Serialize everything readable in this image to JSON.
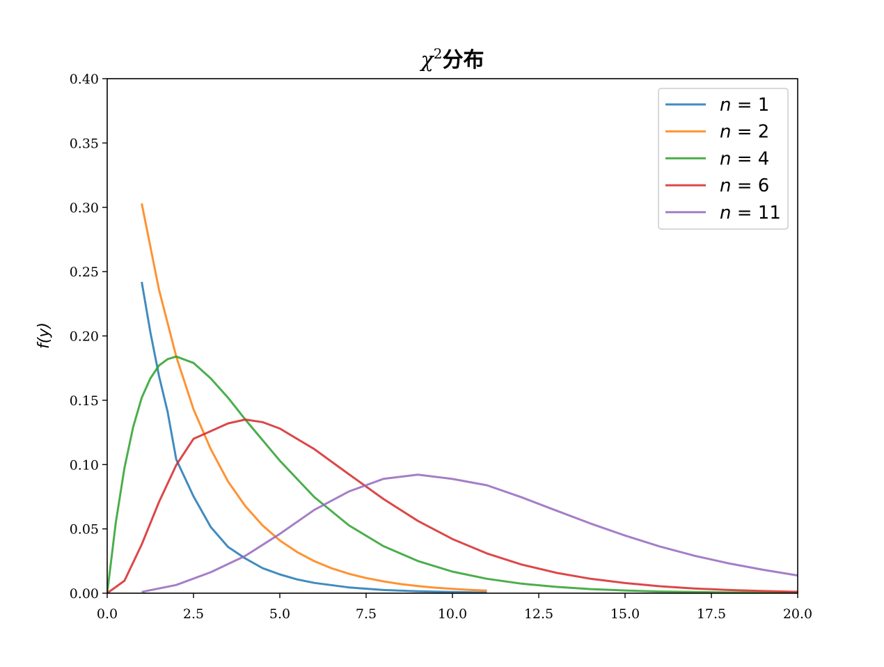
{
  "chart_data": {
    "type": "line",
    "title_symbol": "χ",
    "title_superscript": "2",
    "title_suffix": "分布",
    "xlabel": "",
    "ylabel": "f(y)",
    "xlim": [
      0,
      20
    ],
    "ylim": [
      0,
      0.4
    ],
    "xticks": [
      0,
      2.5,
      5,
      7.5,
      10,
      12.5,
      15,
      17.5,
      20
    ],
    "xtick_labels": [
      "0.0",
      "2.5",
      "5.0",
      "7.5",
      "10.0",
      "12.5",
      "15.0",
      "17.5",
      "20.0"
    ],
    "yticks": [
      0,
      0.05,
      0.1,
      0.15,
      0.2,
      0.25,
      0.3,
      0.35,
      0.4
    ],
    "ytick_labels": [
      "0.00",
      "0.05",
      "0.10",
      "0.15",
      "0.20",
      "0.25",
      "0.30",
      "0.35",
      "0.40"
    ],
    "grid": false,
    "legend_position": "top-right",
    "series": [
      {
        "name": "n = 1",
        "legend_var": "n",
        "legend_value": "1",
        "color": "#1f77b4",
        "x": [
          1,
          1.25,
          1.5,
          1.75,
          2,
          2.5,
          3,
          3.5,
          4,
          4.5,
          5,
          5.5,
          6,
          7,
          8,
          9,
          10,
          11
        ],
        "y": [
          0.242,
          0.203,
          0.169,
          0.141,
          0.104,
          0.0753,
          0.0514,
          0.036,
          0.027,
          0.0195,
          0.0146,
          0.0107,
          0.008,
          0.0045,
          0.0025,
          0.0015,
          0.0009,
          0.0005
        ]
      },
      {
        "name": "n = 2",
        "legend_var": "n",
        "legend_value": "2",
        "color": "#ff7f0e",
        "x": [
          1,
          1.5,
          2,
          2.5,
          3,
          3.5,
          4,
          4.5,
          5,
          5.5,
          6,
          6.5,
          7,
          7.5,
          8,
          8.5,
          9,
          9.5,
          10,
          10.5,
          11
        ],
        "y": [
          0.303,
          0.236,
          0.184,
          0.143,
          0.112,
          0.0869,
          0.0677,
          0.0527,
          0.041,
          0.032,
          0.0249,
          0.0194,
          0.0151,
          0.0118,
          0.0092,
          0.0071,
          0.0056,
          0.0043,
          0.0034,
          0.0026,
          0.002
        ]
      },
      {
        "name": "n = 4",
        "legend_var": "n",
        "legend_value": "4",
        "color": "#2ca02c",
        "x": [
          0,
          0.25,
          0.5,
          0.75,
          1,
          1.25,
          1.5,
          1.75,
          2,
          2.5,
          3,
          3.5,
          4,
          4.5,
          5,
          6,
          7,
          8,
          9,
          10,
          11,
          12,
          13,
          14,
          15,
          16,
          17,
          18,
          19,
          20
        ],
        "y": [
          0,
          0.0551,
          0.0974,
          0.129,
          0.152,
          0.167,
          0.177,
          0.182,
          0.184,
          0.179,
          0.167,
          0.152,
          0.135,
          0.119,
          0.103,
          0.0747,
          0.0528,
          0.0366,
          0.025,
          0.0168,
          0.0112,
          0.0074,
          0.0049,
          0.0032,
          0.0021,
          0.0013,
          0.0009,
          0.0006,
          0.0004,
          0.0002
        ]
      },
      {
        "name": "n = 6",
        "legend_var": "n",
        "legend_value": "6",
        "color": "#d62728",
        "x": [
          0,
          0.5,
          1,
          1.5,
          2,
          2.5,
          3,
          3.5,
          4,
          4.5,
          5,
          5.5,
          6,
          7,
          8,
          9,
          10,
          11,
          12,
          13,
          14,
          15,
          16,
          17,
          18,
          19,
          20
        ],
        "y": [
          0,
          0.0097,
          0.0379,
          0.0709,
          0.0996,
          0.12,
          0.126,
          0.132,
          0.135,
          0.133,
          0.128,
          0.12,
          0.112,
          0.0925,
          0.0733,
          0.0562,
          0.0421,
          0.0309,
          0.0223,
          0.0159,
          0.0112,
          0.0079,
          0.0054,
          0.0037,
          0.0025,
          0.0017,
          0.0011
        ]
      },
      {
        "name": "n = 11",
        "legend_var": "n",
        "legend_value": "11",
        "color": "#9467bd",
        "x": [
          1,
          2,
          3,
          4,
          5,
          6,
          7,
          8,
          9,
          10,
          11,
          12,
          13,
          14,
          15,
          16,
          17,
          18,
          19,
          20
        ],
        "y": [
          0.001,
          0.0064,
          0.0163,
          0.029,
          0.0461,
          0.0648,
          0.0791,
          0.0889,
          0.0922,
          0.0888,
          0.0839,
          0.0746,
          0.0643,
          0.0542,
          0.0448,
          0.0364,
          0.0292,
          0.0232,
          0.0182,
          0.0138
        ]
      }
    ]
  }
}
